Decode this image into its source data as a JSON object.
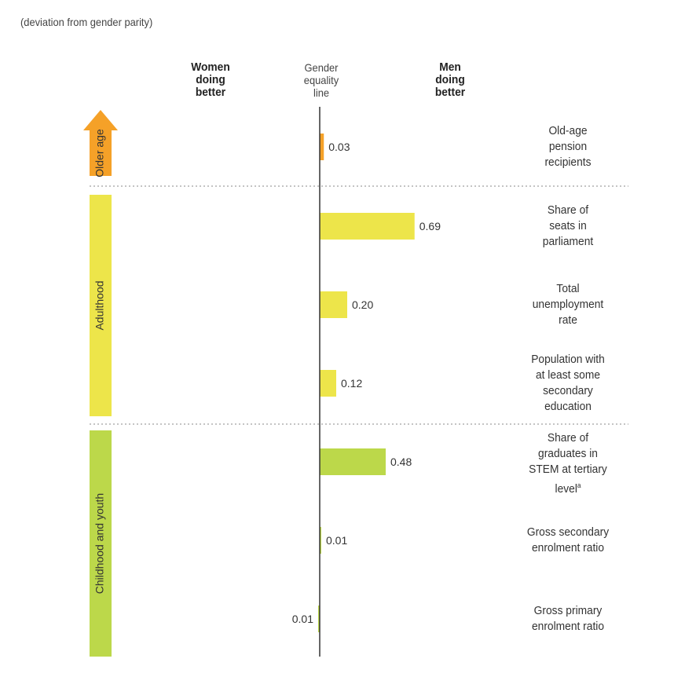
{
  "subtitle": "(deviation from gender parity)",
  "headers": {
    "women": "Women doing better",
    "equality": "Gender equality line",
    "men": "Men doing better"
  },
  "colors": {
    "older_age": "#f5a128",
    "adulthood": "#ede54a",
    "childhood": "#bcd84a",
    "axis": "#333333",
    "separator": "#888888"
  },
  "groups": [
    {
      "name": "Older age",
      "color_key": "older_age",
      "shape": "arrow"
    },
    {
      "name": "Adulthood",
      "color_key": "adulthood",
      "shape": "bar"
    },
    {
      "name": "Childhood and youth",
      "color_key": "childhood",
      "shape": "bar"
    }
  ],
  "chart_data": {
    "type": "bar",
    "orientation": "horizontal",
    "categories": [
      "Old-age pension recipients",
      "Share of seats in parliament",
      "Total unemployment rate",
      "Population with at least some secondary education",
      "Share of graduates in STEM at tertiary level",
      "Gross secondary enrolment ratio",
      "Gross primary enrolment ratio"
    ],
    "category_lines": [
      [
        "Old-age",
        "pension",
        "recipients"
      ],
      [
        "Share of",
        "seats in",
        "parliament"
      ],
      [
        "Total",
        "unemployment",
        "rate"
      ],
      [
        "Population with",
        "at least some",
        "secondary",
        "education"
      ],
      [
        "Share of",
        "graduates in",
        "STEM at tertiary",
        "level"
      ],
      [
        "Gross secondary",
        "enrolment ratio"
      ],
      [
        "Gross primary",
        "enrolment ratio"
      ]
    ],
    "footnote_marker": "a",
    "values": [
      0.03,
      0.69,
      0.2,
      0.12,
      0.48,
      0.01,
      -0.01
    ],
    "labels": [
      "0.03",
      "0.69",
      "0.20",
      "0.12",
      "0.48",
      "0.01",
      "0.01"
    ],
    "group_of": [
      0,
      1,
      1,
      1,
      2,
      2,
      2
    ],
    "xlim": [
      -0.7,
      0.7
    ],
    "grid": false
  }
}
